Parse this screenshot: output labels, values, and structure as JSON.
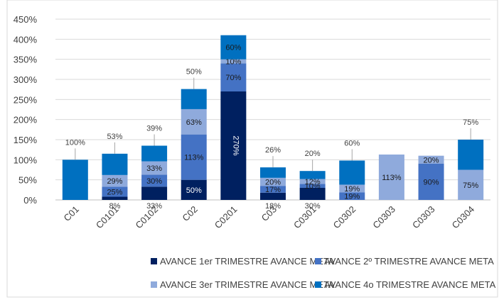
{
  "chart_data": {
    "type": "bar",
    "stacked": true,
    "categories": [
      "C01",
      "C0101",
      "C0102",
      "C02",
      "C0201",
      "C03",
      "C0301",
      "C0302",
      "C0303",
      "C0303",
      "C0304"
    ],
    "series": [
      {
        "name": "AVANCE 1er TRIMESTRE AVANCE META",
        "color": "#002060",
        "values": [
          null,
          8,
          33,
          50,
          270,
          18,
          30,
          null,
          null,
          null,
          null
        ],
        "value_labels": [
          null,
          "8%",
          "33%",
          "50%",
          "270%",
          "18%",
          "30%",
          null,
          null,
          null,
          null
        ]
      },
      {
        "name": "AVANCE 2º TRIMESTRE AVANCE META",
        "color": "#4472c4",
        "values": [
          null,
          25,
          30,
          113,
          70,
          17,
          10,
          19,
          null,
          90,
          null
        ],
        "value_labels": [
          null,
          "25%",
          "30%",
          "113%",
          "70%",
          "17%",
          "10%",
          "19%",
          null,
          "90%",
          null
        ]
      },
      {
        "name": "AVANCE 3er TRIMESTRE AVANCE META",
        "color": "#8faadc",
        "values": [
          null,
          29,
          33,
          63,
          10,
          20,
          12,
          19,
          113,
          20,
          75
        ],
        "value_labels": [
          null,
          "29%",
          "33%",
          "63%",
          "10%",
          "20%",
          "12%",
          "19%",
          "113%",
          "20%",
          "75%"
        ]
      },
      {
        "name": "AVANCE 4o TRIMESTRE AVANCE META",
        "color": "#0070c0",
        "values": [
          100,
          53,
          39,
          50,
          60,
          26,
          20,
          60,
          null,
          null,
          75
        ],
        "value_labels": [
          "100%",
          "53%",
          "39%",
          "50%",
          "60%",
          "26%",
          "20%",
          "60%",
          null,
          null,
          "75%"
        ]
      }
    ],
    "ylim": [
      0,
      450
    ],
    "yticks": [
      {
        "value": 0,
        "label": "0%"
      },
      {
        "value": 50,
        "label": "50%"
      },
      {
        "value": 100,
        "label": "100%"
      },
      {
        "value": 150,
        "label": "150%"
      },
      {
        "value": 200,
        "label": "200%"
      },
      {
        "value": 250,
        "label": "250%"
      },
      {
        "value": 300,
        "label": "300%"
      },
      {
        "value": 350,
        "label": "350%"
      },
      {
        "value": 400,
        "label": "400%"
      },
      {
        "value": 450,
        "label": "450%"
      }
    ],
    "legend": "bottom"
  }
}
